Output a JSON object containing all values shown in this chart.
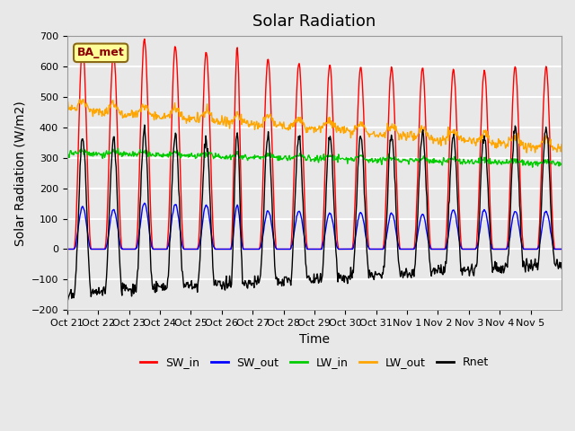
{
  "title": "Solar Radiation",
  "ylabel": "Solar Radiation (W/m2)",
  "xlabel": "Time",
  "ylim": [
    -200,
    700
  ],
  "yticks": [
    -200,
    -100,
    0,
    100,
    200,
    300,
    400,
    500,
    600,
    700
  ],
  "xtick_labels": [
    "Oct 21",
    "Oct 22",
    "Oct 23",
    "Oct 24",
    "Oct 25",
    "Oct 26",
    "Oct 27",
    "Oct 28",
    "Oct 29",
    "Oct 30",
    "Oct 31",
    "Nov 1",
    "Nov 2",
    "Nov 3",
    "Nov 4",
    "Nov 5"
  ],
  "legend_label": "BA_met",
  "series_colors": {
    "SW_in": "#FF0000",
    "SW_out": "#0000FF",
    "LW_in": "#00CC00",
    "LW_out": "#FFA500",
    "Rnet": "#000000"
  },
  "bg_color": "#E8E8E8",
  "grid_color": "#FFFFFF",
  "title_fontsize": 13,
  "axis_fontsize": 10,
  "tick_fontsize": 8,
  "sw_peaks": [
    670,
    650,
    688,
    665,
    648,
    665,
    622,
    610,
    606,
    600,
    598,
    595,
    590,
    588,
    600,
    600
  ],
  "sw_out_peaks": [
    140,
    130,
    150,
    148,
    145,
    145,
    125,
    125,
    120,
    120,
    118,
    115,
    130,
    128,
    125,
    125
  ],
  "day_widths": [
    0.28,
    0.28,
    0.28,
    0.28,
    0.28,
    0.2,
    0.28,
    0.28,
    0.28,
    0.28,
    0.28,
    0.28,
    0.28,
    0.28,
    0.28,
    0.28
  ]
}
